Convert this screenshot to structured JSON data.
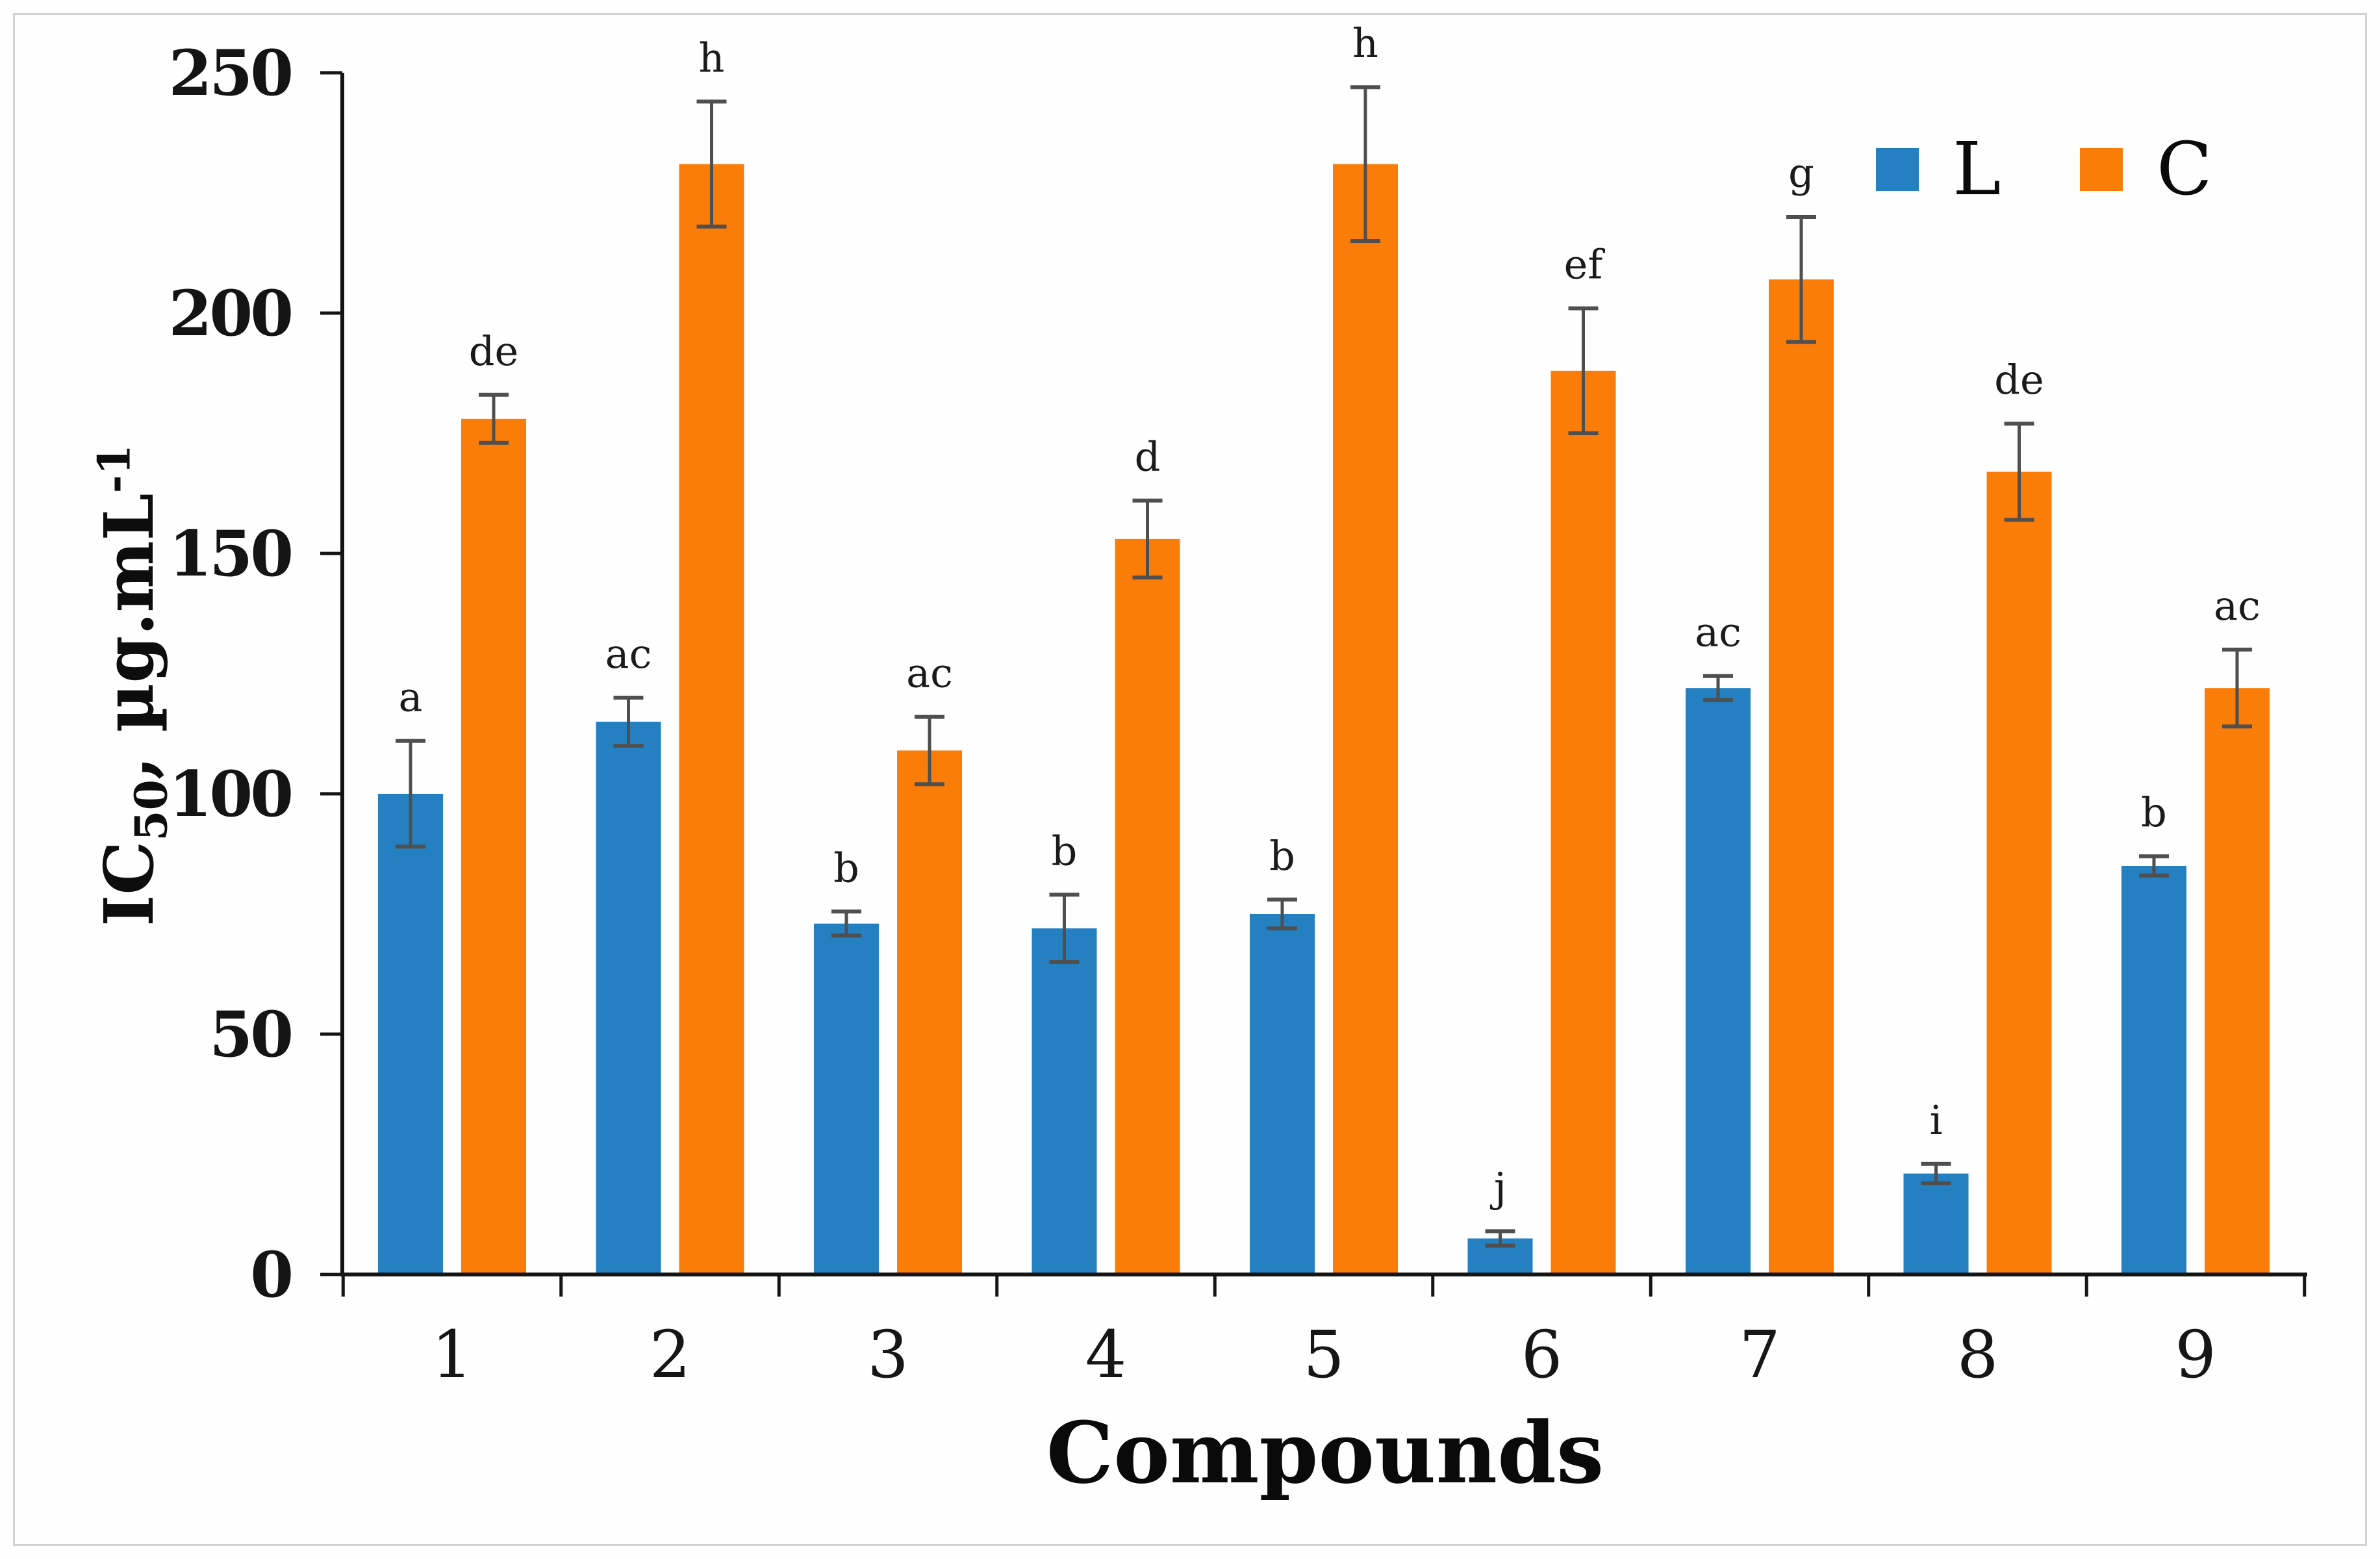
{
  "figure": {
    "background": "#fefefe",
    "frame_border_color": "#d2d2d2",
    "axis_color": "#141414",
    "error_bar_color": "#4f4f4f",
    "text_color": "#141414"
  },
  "chart_data": {
    "type": "bar",
    "title": "",
    "xlabel": "Compounds",
    "ylabel": "IC50, µg.mL-1",
    "ylabel_parts": {
      "prefix": "IC",
      "sub": "50",
      "mid": ", µg.mL",
      "sup": "-1"
    },
    "categories": [
      "1",
      "2",
      "3",
      "4",
      "5",
      "6",
      "7",
      "8",
      "9"
    ],
    "series": [
      {
        "name": "L",
        "color": "#2580c1",
        "values": [
          100,
          115,
          73,
          72,
          75,
          7.5,
          122,
          21,
          85
        ],
        "errors": [
          11,
          5,
          2.5,
          7,
          3,
          1.5,
          2.5,
          2,
          2
        ],
        "letters": [
          "a",
          "ac",
          "b",
          "b",
          "b",
          "j",
          "ac",
          "i",
          "b"
        ]
      },
      {
        "name": "C",
        "color": "#fa7d09",
        "values": [
          178,
          231,
          109,
          153,
          231,
          188,
          207,
          167,
          122
        ],
        "errors": [
          5,
          13,
          7,
          8,
          16,
          13,
          13,
          10,
          8
        ],
        "letters": [
          "de",
          "h",
          "ac",
          "d",
          "h",
          "ef",
          "g",
          "de",
          "ac"
        ]
      }
    ],
    "ylim": [
      0,
      250
    ],
    "yticks": [
      0,
      50,
      100,
      150,
      200,
      250
    ],
    "grid": false,
    "legend_position": "top-right",
    "error_bars": true
  },
  "legend": {
    "items": [
      {
        "label": "L",
        "color": "#2580c1"
      },
      {
        "label": "C",
        "color": "#fa7d09"
      }
    ]
  }
}
